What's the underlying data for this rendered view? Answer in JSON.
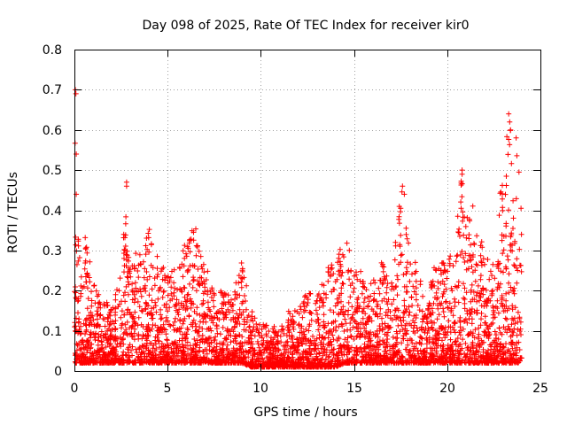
{
  "chart_data": {
    "type": "scatter",
    "title": "Day 098 of 2025, Rate Of TEC Index for receiver kir0",
    "xlabel": "GPS time / hours",
    "ylabel": "ROTI / TECUs",
    "xlim": [
      0,
      25
    ],
    "ylim": [
      0,
      0.8
    ],
    "xticks": [
      0,
      5,
      10,
      15,
      20,
      25
    ],
    "yticks": [
      0,
      0.1,
      0.2,
      0.3,
      0.4,
      0.5,
      0.6,
      0.7,
      0.8
    ],
    "xtick_labels": [
      "0",
      "5",
      "10",
      "15",
      "20",
      "25"
    ],
    "ytick_labels": [
      "0",
      "0.1",
      "0.2",
      "0.3",
      "0.4",
      "0.5",
      "0.6",
      "0.7",
      "0.8"
    ],
    "grid": true,
    "marker": "plus",
    "color": "#ff0000",
    "series": [
      {
        "name": "ROTI",
        "envelope_hours": [
          0,
          0.1,
          0.3,
          0.5,
          0.8,
          1,
          1.5,
          2,
          2.5,
          2.7,
          3,
          3.5,
          4,
          4.5,
          5,
          5.5,
          6,
          6.5,
          7,
          7.5,
          8,
          8.5,
          9,
          9.5,
          10,
          10.5,
          11,
          11.5,
          12,
          12.5,
          13,
          13.5,
          14,
          14.5,
          15,
          15.5,
          16,
          16.5,
          17,
          17.5,
          17.7,
          18,
          18.5,
          19,
          19.5,
          20,
          20.5,
          20.8,
          21,
          21.5,
          22,
          22.5,
          23,
          23.3,
          23.5,
          23.8,
          24
        ],
        "envelope_max_roti": [
          0.7,
          0.44,
          0.32,
          0.37,
          0.28,
          0.22,
          0.18,
          0.17,
          0.25,
          0.47,
          0.26,
          0.32,
          0.36,
          0.28,
          0.25,
          0.26,
          0.34,
          0.36,
          0.26,
          0.22,
          0.2,
          0.18,
          0.3,
          0.15,
          0.12,
          0.12,
          0.1,
          0.16,
          0.15,
          0.2,
          0.18,
          0.25,
          0.3,
          0.35,
          0.26,
          0.25,
          0.22,
          0.28,
          0.22,
          0.46,
          0.42,
          0.32,
          0.24,
          0.23,
          0.28,
          0.27,
          0.36,
          0.5,
          0.42,
          0.41,
          0.29,
          0.28,
          0.52,
          0.64,
          0.6,
          0.58,
          0.38
        ],
        "envelope_min_roti": [
          0.02,
          0.02,
          0.02,
          0.02,
          0.02,
          0.02,
          0.02,
          0.02,
          0.02,
          0.02,
          0.02,
          0.02,
          0.02,
          0.02,
          0.02,
          0.02,
          0.02,
          0.02,
          0.02,
          0.02,
          0.02,
          0.02,
          0.02,
          0.01,
          0.01,
          0.01,
          0.01,
          0.01,
          0.01,
          0.01,
          0.01,
          0.01,
          0.01,
          0.02,
          0.02,
          0.02,
          0.02,
          0.02,
          0.02,
          0.02,
          0.02,
          0.02,
          0.02,
          0.02,
          0.02,
          0.02,
          0.02,
          0.02,
          0.02,
          0.02,
          0.02,
          0.02,
          0.02,
          0.02,
          0.02,
          0.02,
          0.03
        ],
        "highlight_points": [
          [
            0.05,
            0.7
          ],
          [
            0.08,
            0.69
          ],
          [
            0.1,
            0.54
          ],
          [
            0.1,
            0.44
          ],
          [
            2.8,
            0.47
          ],
          [
            2.8,
            0.46
          ],
          [
            17.6,
            0.46
          ],
          [
            17.7,
            0.44
          ],
          [
            20.8,
            0.5
          ],
          [
            20.8,
            0.49
          ],
          [
            23.3,
            0.64
          ],
          [
            23.35,
            0.62
          ],
          [
            23.4,
            0.6
          ],
          [
            23.7,
            0.58
          ]
        ]
      }
    ]
  }
}
